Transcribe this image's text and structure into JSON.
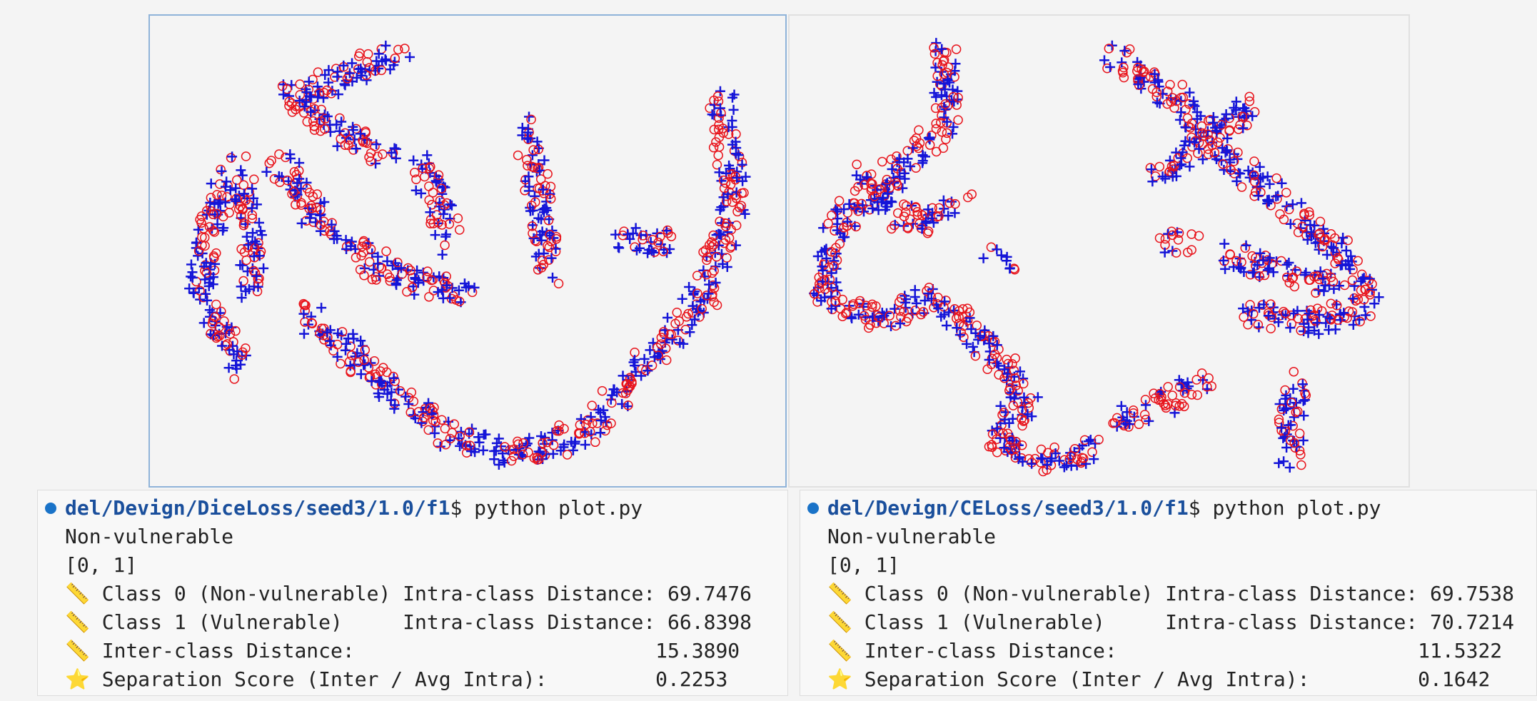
{
  "terminals": [
    {
      "prompt_path": "del/Devign/DiceLoss/seed3/1.0/f1",
      "command": "$ python plot.py",
      "lines": [
        "Non-vulnerable",
        "[0, 1]",
        "📏 Class 0 (Non-vulnerable) Intra-class Distance: 69.7476",
        "📏 Class 1 (Vulnerable)     Intra-class Distance: 66.8398",
        "📏 Inter-class Distance:                         15.3890",
        "⭐ Separation Score (Inter / Avg Intra):         0.2253"
      ]
    },
    {
      "prompt_path": "del/Devign/CELoss/seed3/1.0/f1",
      "command": "$ python plot.py",
      "lines": [
        "Non-vulnerable",
        "[0, 1]",
        "📏 Class 0 (Non-vulnerable) Intra-class Distance: 69.7538",
        "📏 Class 1 (Vulnerable)     Intra-class Distance: 70.7214",
        "📏 Inter-class Distance:                         11.5322",
        "⭐ Separation Score (Inter / Avg Intra):         0.1642"
      ]
    }
  ]
}
